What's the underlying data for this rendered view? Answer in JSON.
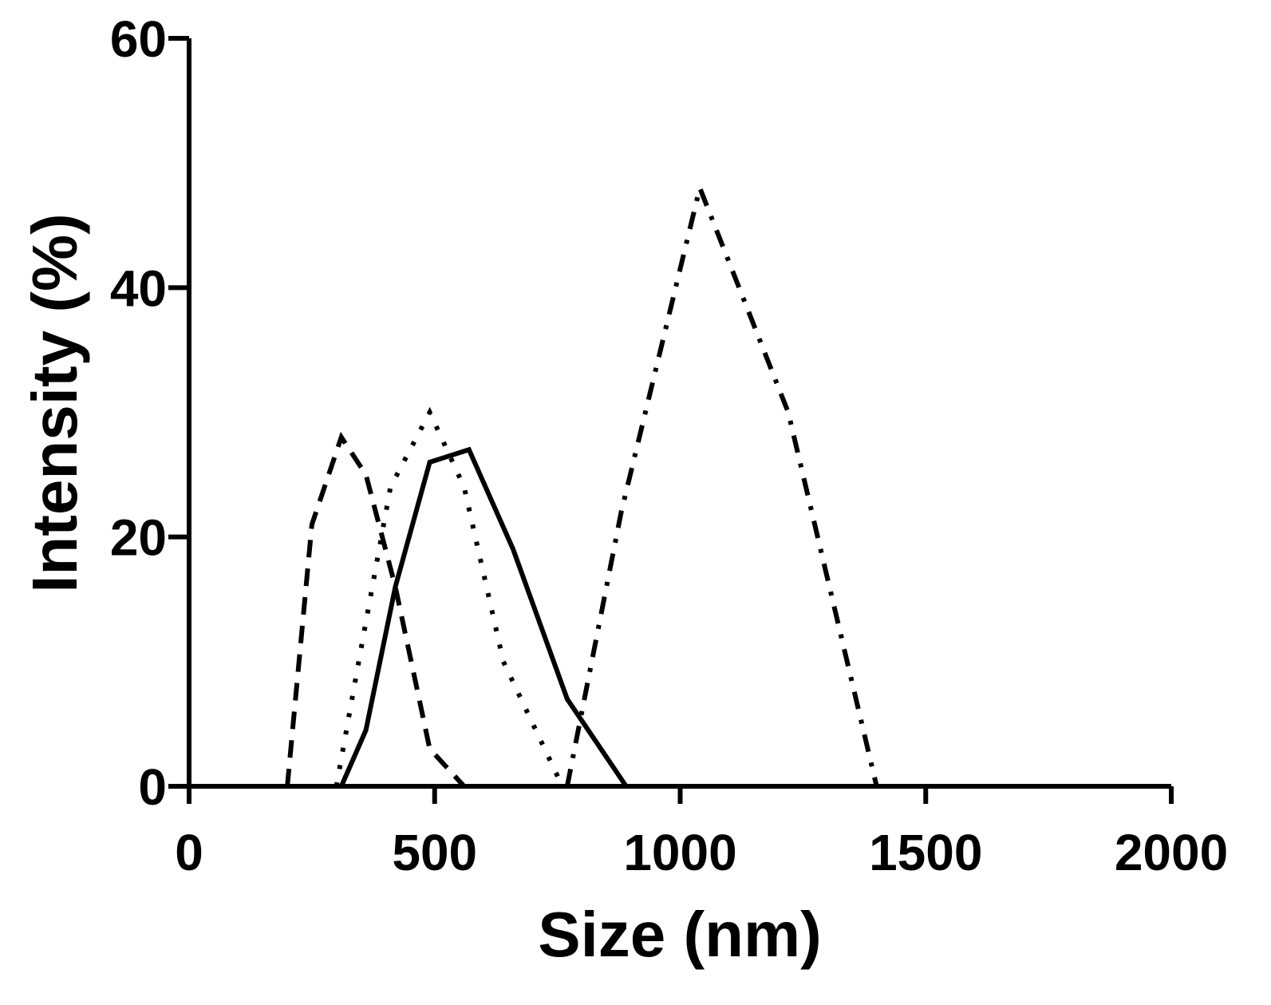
{
  "chart_data": {
    "type": "line",
    "title": "",
    "xlabel": "Size (nm)",
    "ylabel": "Intensity (%)",
    "xlim": [
      0,
      2000
    ],
    "ylim": [
      0,
      60
    ],
    "x_ticks": [
      "0",
      "500",
      "1000",
      "1500",
      "2000"
    ],
    "y_ticks": [
      "0",
      "20",
      "40",
      "60"
    ],
    "grid": false,
    "legend": "none",
    "series": [
      {
        "style": "solid",
        "points": [
          [
            310,
            0
          ],
          [
            360,
            4.5
          ],
          [
            420,
            16
          ],
          [
            490,
            26
          ],
          [
            570,
            27
          ],
          [
            660,
            19
          ],
          [
            770,
            7
          ],
          [
            890,
            0
          ]
        ]
      },
      {
        "style": "dashed",
        "points": [
          [
            200,
            0
          ],
          [
            250,
            21
          ],
          [
            310,
            28
          ],
          [
            360,
            25
          ],
          [
            420,
            16
          ],
          [
            490,
            3
          ],
          [
            560,
            0
          ]
        ]
      },
      {
        "style": "dotted",
        "points": [
          [
            300,
            0
          ],
          [
            350,
            11
          ],
          [
            410,
            24
          ],
          [
            490,
            30
          ],
          [
            560,
            24
          ],
          [
            640,
            10
          ],
          [
            760,
            0
          ]
        ]
      },
      {
        "style": "dash-dot",
        "points": [
          [
            770,
            0
          ],
          [
            880,
            22
          ],
          [
            1040,
            48
          ],
          [
            1220,
            30
          ],
          [
            1400,
            0
          ]
        ]
      }
    ]
  }
}
